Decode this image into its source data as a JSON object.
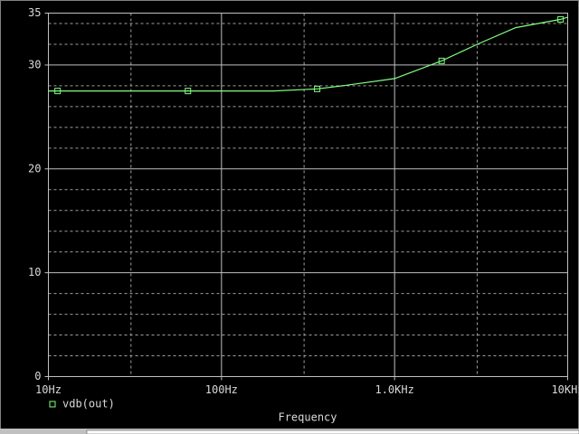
{
  "chart_data": {
    "type": "line",
    "log_x": true,
    "xlabel": "Frequency",
    "xlim": [
      10,
      10000
    ],
    "ylim": [
      0,
      35
    ],
    "xticks": [
      {
        "value": 10,
        "label": "10Hz"
      },
      {
        "value": 100,
        "label": "100Hz"
      },
      {
        "value": 1000,
        "label": "1.0KHz"
      },
      {
        "value": 10000,
        "label": "10KHz"
      }
    ],
    "xminorticks": [
      30,
      300,
      3000
    ],
    "yticks": [
      0,
      10,
      20,
      30,
      35
    ],
    "yminorticks": [
      2,
      4,
      6,
      8,
      12,
      14,
      16,
      18,
      22,
      24,
      26,
      28,
      32,
      34
    ],
    "grid": true,
    "series": [
      {
        "name": "vdb(out)",
        "color": "#80ff80",
        "x": [
          10,
          11.3,
          64,
          100,
          200,
          357,
          500,
          1000,
          1870,
          3000,
          5000,
          9100,
          10000
        ],
        "values": [
          27.5,
          27.5,
          27.5,
          27.5,
          27.5,
          27.7,
          28.0,
          28.7,
          30.4,
          32.0,
          33.6,
          34.4,
          34.6
        ],
        "markers": [
          1,
          2,
          5,
          8,
          11
        ]
      }
    ]
  }
}
